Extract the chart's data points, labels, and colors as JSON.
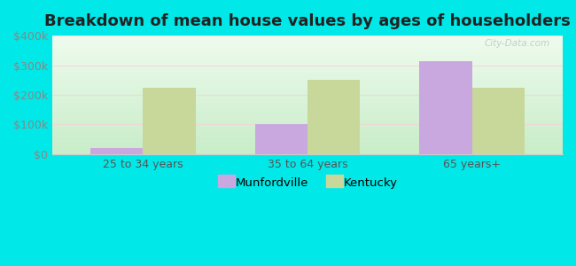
{
  "title": "Breakdown of mean house values by ages of householders",
  "categories": [
    "25 to 34 years",
    "35 to 64 years",
    "65 years+"
  ],
  "munfordville_values": [
    20000,
    100000,
    315000
  ],
  "kentucky_values": [
    225000,
    252000,
    225000
  ],
  "munfordville_color": "#c9a8e0",
  "kentucky_color": "#c8d89a",
  "ylim": [
    0,
    400000
  ],
  "yticks": [
    0,
    100000,
    200000,
    300000,
    400000
  ],
  "ytick_labels": [
    "$0",
    "$100k",
    "$200k",
    "$300k",
    "$400k"
  ],
  "background_color": "#00e8e8",
  "grad_top": "#eefbee",
  "grad_bottom": "#c8ecc8",
  "legend_munfordville": "Munfordville",
  "legend_kentucky": "Kentucky",
  "title_fontsize": 13,
  "bar_width": 0.32,
  "watermark": "City-Data.com",
  "grid_color": "#ddeecc"
}
